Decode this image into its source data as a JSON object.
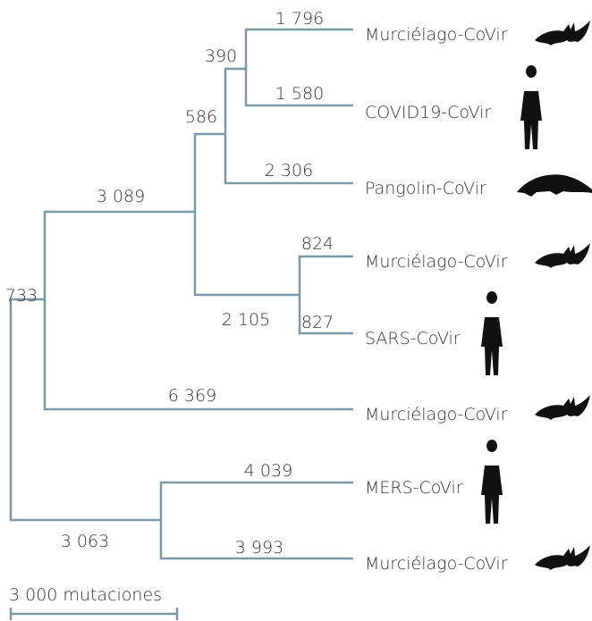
{
  "leaves": [
    "Murciélago-CoVir",
    "COVID19-CoVir",
    "Pangolin-CoVir",
    "Murciélago-CoVir",
    "SARS-CoVir",
    "Murciélago-CoVir",
    "MERS-CoVir",
    "Murciélago-CoVir"
  ],
  "branches": [
    "1 796",
    "390",
    "1 580",
    "586",
    "2 306",
    "3 089",
    "824",
    "2 105",
    "827",
    "733",
    "6 369",
    "4 039",
    "3 063",
    "3 993"
  ],
  "scale": "3 000 mutaciones"
}
